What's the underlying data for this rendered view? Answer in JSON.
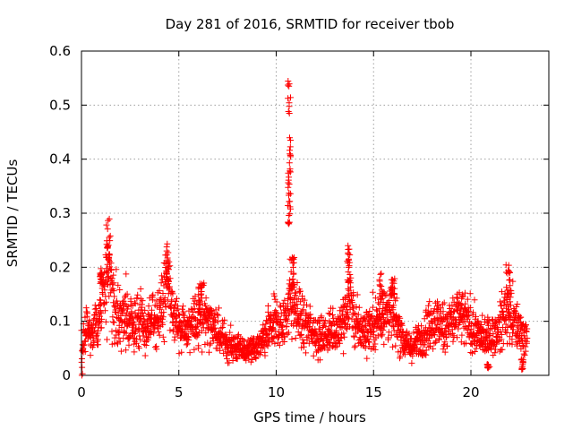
{
  "chart_data": {
    "type": "scatter",
    "title": "Day 281 of 2016, SRMTID for receiver tbob",
    "xlabel": "GPS time / hours",
    "ylabel": "SRMTID / TECUs",
    "xlim": [
      0,
      24
    ],
    "ylim": [
      0,
      0.6
    ],
    "xticks": [
      0,
      5,
      10,
      15,
      20
    ],
    "yticks": [
      0,
      0.1,
      0.2,
      0.3,
      0.4,
      0.5,
      0.6
    ],
    "xtick_labels": [
      "0",
      "5",
      "10",
      "15",
      "20"
    ],
    "ytick_labels": [
      "0",
      "0.1",
      "0.2",
      "0.3",
      "0.4",
      "0.5",
      "0.6"
    ],
    "grid": true,
    "marker": "+",
    "color": "#ff0000",
    "series": [
      {
        "name": "SRMTID",
        "profile": [
          [
            0.0,
            0.0
          ],
          [
            0.1,
            0.08
          ],
          [
            0.3,
            0.09
          ],
          [
            0.6,
            0.08
          ],
          [
            0.8,
            0.09
          ],
          [
            1.0,
            0.12
          ],
          [
            1.2,
            0.17
          ],
          [
            1.4,
            0.22
          ],
          [
            1.6,
            0.14
          ],
          [
            1.8,
            0.12
          ],
          [
            2.0,
            0.1
          ],
          [
            2.3,
            0.11
          ],
          [
            2.6,
            0.09
          ],
          [
            3.0,
            0.1
          ],
          [
            3.3,
            0.08
          ],
          [
            3.6,
            0.1
          ],
          [
            3.9,
            0.11
          ],
          [
            4.2,
            0.13
          ],
          [
            4.4,
            0.19
          ],
          [
            4.6,
            0.12
          ],
          [
            4.9,
            0.1
          ],
          [
            5.2,
            0.09
          ],
          [
            5.5,
            0.08
          ],
          [
            5.8,
            0.1
          ],
          [
            6.2,
            0.12
          ],
          [
            6.5,
            0.1
          ],
          [
            6.8,
            0.09
          ],
          [
            7.1,
            0.07
          ],
          [
            7.5,
            0.06
          ],
          [
            8.0,
            0.05
          ],
          [
            8.5,
            0.045
          ],
          [
            9.0,
            0.05
          ],
          [
            9.3,
            0.06
          ],
          [
            9.6,
            0.08
          ],
          [
            10.0,
            0.1
          ],
          [
            10.3,
            0.09
          ],
          [
            10.6,
            0.12
          ],
          [
            10.8,
            0.15
          ],
          [
            11.0,
            0.12
          ],
          [
            11.3,
            0.1
          ],
          [
            11.6,
            0.09
          ],
          [
            12.0,
            0.08
          ],
          [
            12.4,
            0.07
          ],
          [
            12.8,
            0.08
          ],
          [
            13.2,
            0.09
          ],
          [
            13.6,
            0.11
          ],
          [
            13.8,
            0.15
          ],
          [
            14.0,
            0.1
          ],
          [
            14.4,
            0.08
          ],
          [
            14.8,
            0.09
          ],
          [
            15.2,
            0.1
          ],
          [
            15.6,
            0.12
          ],
          [
            16.0,
            0.11
          ],
          [
            16.3,
            0.09
          ],
          [
            16.6,
            0.06
          ],
          [
            17.0,
            0.05
          ],
          [
            17.4,
            0.07
          ],
          [
            17.8,
            0.09
          ],
          [
            18.2,
            0.1
          ],
          [
            18.6,
            0.09
          ],
          [
            19.0,
            0.1
          ],
          [
            19.4,
            0.11
          ],
          [
            19.8,
            0.1
          ],
          [
            20.2,
            0.08
          ],
          [
            20.6,
            0.07
          ],
          [
            21.0,
            0.07
          ],
          [
            21.4,
            0.08
          ],
          [
            21.8,
            0.12
          ],
          [
            22.2,
            0.1
          ],
          [
            22.6,
            0.08
          ],
          [
            22.8,
            0.07
          ]
        ],
        "bursts": [
          {
            "x": [
              1.25,
              1.45
            ],
            "y": [
              0.18,
              0.25
            ]
          },
          {
            "x": [
              0.95,
              1.05
            ],
            "y": [
              0.17,
              0.2
            ]
          },
          {
            "x": [
              4.3,
              4.5
            ],
            "y": [
              0.16,
              0.23
            ]
          },
          {
            "x": [
              6.0,
              6.2
            ],
            "y": [
              0.13,
              0.17
            ]
          },
          {
            "x": [
              10.6,
              10.75
            ],
            "y": [
              0.28,
              0.55
            ]
          },
          {
            "x": [
              10.7,
              10.95
            ],
            "y": [
              0.15,
              0.22
            ]
          },
          {
            "x": [
              13.65,
              13.8
            ],
            "y": [
              0.17,
              0.24
            ]
          },
          {
            "x": [
              15.3,
              15.5
            ],
            "y": [
              0.14,
              0.19
            ]
          },
          {
            "x": [
              15.9,
              16.1
            ],
            "y": [
              0.15,
              0.18
            ]
          },
          {
            "x": [
              21.75,
              22.05
            ],
            "y": [
              0.14,
              0.21
            ]
          },
          {
            "x": [
              20.8,
              20.9
            ],
            "y": [
              0.013,
              0.03
            ]
          },
          {
            "x": [
              22.6,
              22.7
            ],
            "y": [
              0.01,
              0.03
            ]
          }
        ],
        "point_count": 2300,
        "x_range": [
          0.0,
          22.9
        ]
      }
    ]
  }
}
